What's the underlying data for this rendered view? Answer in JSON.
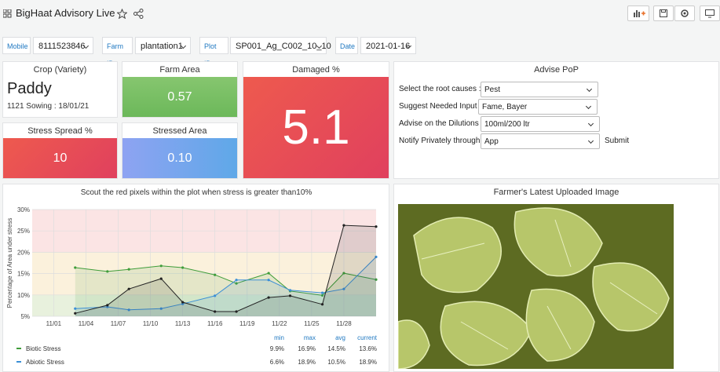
{
  "header": {
    "title": "BigHaat Advisory Live"
  },
  "variables": [
    {
      "label": "Mobile",
      "value": "8111523846"
    },
    {
      "label": "Farm ID",
      "value": "plantation1"
    },
    {
      "label": "Plot ID",
      "value": "SP001_Ag_C002_10_10"
    },
    {
      "label": "Date",
      "value": "2021-01-16"
    }
  ],
  "crop": {
    "title": "Crop (Variety)",
    "value": "Paddy",
    "subtitle": "1121 Sowing : 18/01/21"
  },
  "farm_area": {
    "title": "Farm Area",
    "value": "0.57"
  },
  "damaged": {
    "title": "Damaged %",
    "value": "5.1"
  },
  "stress_spread": {
    "title": "Stress Spread %",
    "value": "10"
  },
  "stressed_area": {
    "title": "Stressed Area",
    "value": "0.10"
  },
  "advise": {
    "title": "Advise PoP",
    "rows": [
      {
        "label": "Select the root causes :",
        "value": "Pest"
      },
      {
        "label": "Suggest Needed Input :",
        "value": "Fame, Bayer"
      },
      {
        "label": "Advise on the Dilutions :",
        "value": "100ml/200 ltr"
      },
      {
        "label": "Notify Privately through:",
        "value": "App"
      }
    ],
    "submit": "Submit"
  },
  "image_panel": {
    "title": "Farmer's Latest Uploaded Image"
  },
  "chart_data": {
    "type": "line",
    "title": "Scout the red pixels within the plot when stress is greater than10%",
    "ylabel": "Percentage of Area under stress",
    "x": [
      "11/03",
      "11/06",
      "11/08",
      "11/11",
      "11/13",
      "11/16",
      "11/18",
      "11/21",
      "11/23",
      "11/26",
      "11/28",
      "12/01"
    ],
    "xlim": [
      "10/30",
      "12/01"
    ],
    "xticks": [
      "11/01",
      "11/04",
      "11/07",
      "11/10",
      "11/13",
      "11/16",
      "11/19",
      "11/22",
      "11/25",
      "11/28"
    ],
    "ylim": [
      5,
      30
    ],
    "yticks": [
      {
        "value": 5,
        "label": "5%"
      },
      {
        "value": 10,
        "label": "10%"
      },
      {
        "value": 15,
        "label": "15%"
      },
      {
        "value": 20,
        "label": "20%"
      },
      {
        "value": 25,
        "label": "25%"
      },
      {
        "value": 30,
        "label": "30%"
      }
    ],
    "threshold_bands": [
      {
        "from": 5,
        "to": 10,
        "color": "#e8f1dd"
      },
      {
        "from": 10,
        "to": 20,
        "color": "#fbf1dc"
      },
      {
        "from": 20,
        "to": 30,
        "color": "#fbe4e4"
      }
    ],
    "legend_headers": [
      "min",
      "max",
      "avg",
      "current"
    ],
    "series": [
      {
        "name": "Biotic Stress",
        "color": "#3f9d3a",
        "values": [
          16.4,
          15.5,
          16.0,
          16.8,
          16.4,
          14.7,
          12.7,
          15.1,
          10.9,
          9.9,
          15.1,
          13.6
        ],
        "stats": [
          "9.9%",
          "16.9%",
          "14.5%",
          "13.6%"
        ]
      },
      {
        "name": "Abiotic Stress",
        "color": "#3b8fd6",
        "values": [
          6.8,
          7.2,
          6.5,
          6.8,
          7.9,
          9.8,
          13.5,
          13.5,
          11.1,
          10.5,
          11.4,
          18.9
        ],
        "stats": [
          "6.6%",
          "18.9%",
          "10.5%",
          "18.9%"
        ]
      },
      {
        "color": "#222222",
        "values": [
          5.7,
          7.6,
          11.4,
          13.8,
          8.3,
          6.1,
          6.1,
          9.4,
          9.8,
          7.8,
          26.3,
          26.0
        ]
      }
    ]
  }
}
